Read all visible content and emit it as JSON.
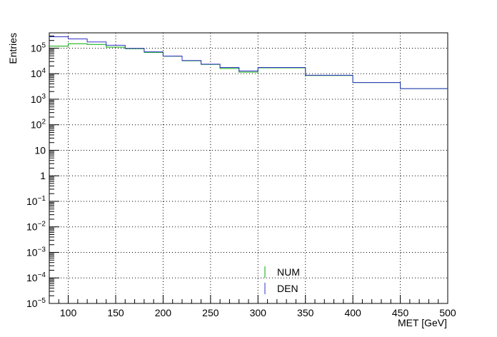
{
  "chart_data": {
    "type": "line",
    "style": "step-histogram",
    "xlabel": "MET [GeV]",
    "ylabel": "Entries",
    "xlim": [
      80,
      500
    ],
    "ylim_log10": [
      -5,
      5.6
    ],
    "yscale": "log",
    "grid": true,
    "legend_position": "bottom-center",
    "x_ticks": [
      100,
      150,
      200,
      250,
      300,
      350,
      400,
      450,
      500
    ],
    "y_ticks_exp": [
      -5,
      -4,
      -3,
      -2,
      -1,
      0,
      1,
      2,
      3,
      4,
      5
    ],
    "y_tick_labels": [
      "10^-5",
      "10^-4",
      "10^-3",
      "10^-2",
      "10^-1",
      "1",
      "10",
      "10^2",
      "10^3",
      "10^4",
      "10^5"
    ],
    "bin_edges": [
      80,
      100,
      120,
      140,
      160,
      180,
      200,
      220,
      240,
      260,
      280,
      300,
      350,
      400,
      450,
      500
    ],
    "series": [
      {
        "name": "NUM",
        "color": "#00aa00",
        "values": [
          120000,
          150000,
          140000,
          110000,
          95000,
          68000,
          48000,
          32000,
          23000,
          16000,
          11500,
          17000,
          8500,
          4500,
          2600
        ]
      },
      {
        "name": "DEN",
        "color": "#3333cc",
        "values": [
          280000,
          230000,
          175000,
          130000,
          98000,
          72000,
          49000,
          33000,
          23500,
          17500,
          12800,
          17500,
          8700,
          4500,
          2600
        ]
      }
    ]
  }
}
